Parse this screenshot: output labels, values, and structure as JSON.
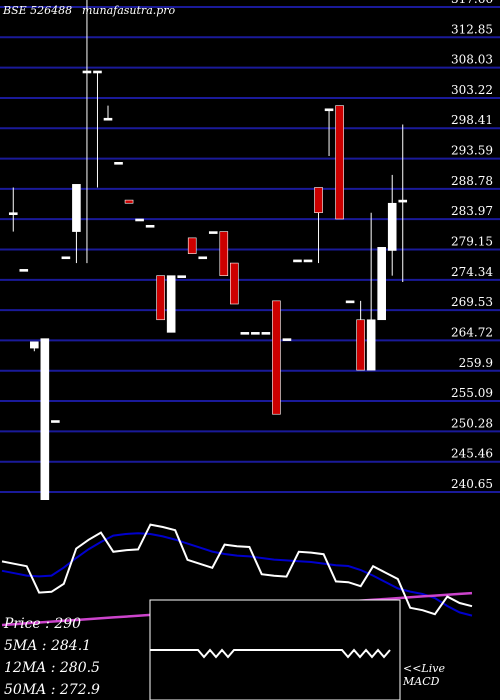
{
  "header": {
    "code": "BSE 526488",
    "site": "munafasutra.pro"
  },
  "chart_data": {
    "type": "candlestick",
    "y_ticks": [
      "317.66",
      "312.85",
      "308.03",
      "303.22",
      "298.41",
      "293.59",
      "288.78",
      "283.97",
      "279.15",
      "274.34",
      "269.53",
      "264.72",
      "259.9",
      "255.09",
      "250.28",
      "245.46",
      "240.65"
    ],
    "ylim": [
      240.65,
      317.66
    ],
    "candles": [
      {
        "o": 285.0,
        "c": 285.0,
        "h": 289.0,
        "l": 282.0
      },
      {
        "o": 276.0,
        "c": 276.0,
        "h": 276.0,
        "l": 276.0
      },
      {
        "o": 263.5,
        "c": 264.5,
        "h": 264.5,
        "l": 263.0
      },
      {
        "o": 229.0,
        "c": 265.0,
        "h": 265.0,
        "l": 229.0
      },
      {
        "o": 252.0,
        "c": 252.0,
        "h": 252.0,
        "l": 252.0
      },
      {
        "o": 278.0,
        "c": 278.0,
        "h": 278.0,
        "l": 278.0
      },
      {
        "o": 282.0,
        "c": 289.5,
        "h": 289.5,
        "l": 277.0
      },
      {
        "o": 307.5,
        "c": 307.5,
        "h": 323.0,
        "l": 277.0
      },
      {
        "o": 307.5,
        "c": 307.5,
        "h": 307.5,
        "l": 289.0
      },
      {
        "o": 300.0,
        "c": 300.0,
        "h": 302.0,
        "l": 300.0
      },
      {
        "o": 293.0,
        "c": 293.0,
        "h": 293.0,
        "l": 293.0
      },
      {
        "o": 287.0,
        "c": 286.5,
        "h": 287.0,
        "l": 286.5
      },
      {
        "o": 284.0,
        "c": 284.0,
        "h": 284.0,
        "l": 284.0
      },
      {
        "o": 283.0,
        "c": 283.0,
        "h": 283.0,
        "l": 283.0
      },
      {
        "o": 275.0,
        "c": 268.0,
        "h": 275.0,
        "l": 268.0
      },
      {
        "o": 266.0,
        "c": 275.0,
        "h": 275.0,
        "l": 266.0
      },
      {
        "o": 275.0,
        "c": 275.0,
        "h": 275.0,
        "l": 275.0
      },
      {
        "o": 281.0,
        "c": 278.5,
        "h": 281.0,
        "l": 278.5
      },
      {
        "o": 278.0,
        "c": 278.0,
        "h": 278.0,
        "l": 278.0
      },
      {
        "o": 282.0,
        "c": 282.0,
        "h": 282.0,
        "l": 282.0
      },
      {
        "o": 282.0,
        "c": 275.0,
        "h": 282.0,
        "l": 275.0
      },
      {
        "o": 277.0,
        "c": 270.5,
        "h": 277.0,
        "l": 270.5
      },
      {
        "o": 266.0,
        "c": 266.0,
        "h": 266.0,
        "l": 266.0
      },
      {
        "o": 266.0,
        "c": 266.0,
        "h": 266.0,
        "l": 266.0
      },
      {
        "o": 266.0,
        "c": 266.0,
        "h": 266.0,
        "l": 266.0
      },
      {
        "o": 271.0,
        "c": 253.0,
        "h": 271.0,
        "l": 253.0
      },
      {
        "o": 265.0,
        "c": 265.0,
        "h": 265.0,
        "l": 265.0
      },
      {
        "o": 277.5,
        "c": 277.5,
        "h": 277.5,
        "l": 277.5
      },
      {
        "o": 277.5,
        "c": 277.5,
        "h": 277.5,
        "l": 277.5
      },
      {
        "o": 289.0,
        "c": 285.0,
        "h": 289.0,
        "l": 277.0
      },
      {
        "o": 301.5,
        "c": 301.5,
        "h": 301.5,
        "l": 294.0
      },
      {
        "o": 302.0,
        "c": 284.0,
        "h": 302.0,
        "l": 284.0
      },
      {
        "o": 271.0,
        "c": 271.0,
        "h": 271.0,
        "l": 271.0
      },
      {
        "o": 268.0,
        "c": 260.0,
        "h": 271.0,
        "l": 260.0
      },
      {
        "o": 260.0,
        "c": 268.0,
        "h": 285.0,
        "l": 260.0
      },
      {
        "o": 268.0,
        "c": 279.5,
        "h": 279.5,
        "l": 268.0
      },
      {
        "o": 279.0,
        "c": 286.5,
        "h": 291.0,
        "l": 275.0
      },
      {
        "o": 287.0,
        "c": 287.0,
        "h": 299.0,
        "l": 274.0
      }
    ],
    "price_line": [
      74,
      71,
      68,
      67,
      68,
      78,
      90,
      101,
      110,
      118,
      120,
      121,
      120,
      117,
      113,
      108,
      103,
      98,
      95,
      93,
      92,
      90,
      88,
      87,
      86,
      85,
      83,
      81,
      80,
      75,
      68,
      60,
      52,
      48,
      45,
      40,
      30,
      22,
      18
    ],
    "stats": {
      "price_label": "Price   : 290",
      "ma5_label": "5MA : 284.1",
      "ma12_label": "12MA : 280.5",
      "ma50_label": "50MA : 272.9"
    },
    "macd_label_1": "<<Live",
    "macd_label_2": "MACD",
    "colors": {
      "up": "#ffffff",
      "down": "#cc0000",
      "ma_blue": "#0000cc",
      "ma_purple": "#cc44cc",
      "grid": "#1a1a99"
    }
  }
}
